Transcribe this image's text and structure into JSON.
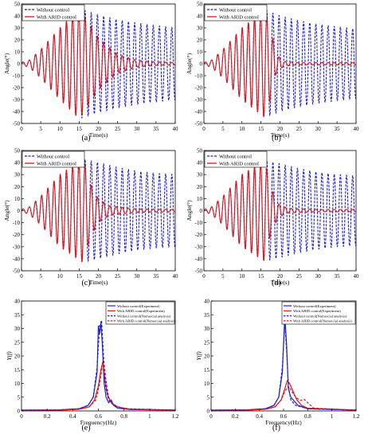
{
  "chart_data": [
    {
      "panel_label": "(a)",
      "type": "line",
      "xlabel": "Time(s)",
      "ylabel": "Angle(°)",
      "xlim": [
        0,
        40
      ],
      "ylim": [
        -50,
        50
      ],
      "xticks": [
        "0",
        "5",
        "10",
        "15",
        "20",
        "25",
        "30",
        "35",
        "40"
      ],
      "yticks": [
        "-50",
        "-40",
        "-30",
        "-20",
        "-10",
        "0",
        "10",
        "20",
        "30",
        "40",
        "50"
      ],
      "legend": "top-left",
      "series": [
        {
          "name": "Without control",
          "color": "#1f1fd6",
          "style": "dashed",
          "amplitude_envelope": {
            "t": [
              0,
              2,
              5,
              10,
              15,
              20,
              25,
              30,
              35,
              40
            ],
            "amp": [
              1,
              3,
              12,
              30,
              46,
              41,
              37,
              34,
              32,
              30
            ]
          }
        },
        {
          "name": "With ARID control",
          "color": "#e01414",
          "style": "solid",
          "amplitude_envelope": {
            "t": [
              0,
              2,
              5,
              10,
              15,
              18,
              20,
              25,
              30,
              35,
              40
            ],
            "amp": [
              1,
              3,
              12,
              30,
              46,
              32,
              22,
              8,
              3,
              1.5,
              1
            ]
          }
        }
      ]
    },
    {
      "panel_label": "(b)",
      "type": "line",
      "xlabel": "Time(s)",
      "ylabel": "Angle(°)",
      "xlim": [
        0,
        40
      ],
      "ylim": [
        -50,
        50
      ],
      "xticks": [
        "0",
        "5",
        "10",
        "15",
        "20",
        "25",
        "30",
        "35",
        "40"
      ],
      "yticks": [
        "-50",
        "-40",
        "-30",
        "-20",
        "-10",
        "0",
        "10",
        "20",
        "30",
        "40",
        "50"
      ],
      "legend": "top-left",
      "series": [
        {
          "name": "Without control",
          "color": "#1f1fd6",
          "style": "dashed",
          "amplitude_envelope": {
            "t": [
              0,
              2,
              5,
              10,
              16,
              20,
              25,
              30,
              35,
              40
            ],
            "amp": [
              1,
              3,
              12,
              30,
              45,
              40,
              36,
              33,
              31,
              29
            ]
          }
        },
        {
          "name": "With ARID control",
          "color": "#e01414",
          "style": "solid",
          "amplitude_envelope": {
            "t": [
              0,
              2,
              5,
              10,
              16,
              17.5,
              19,
              21,
              25,
              40
            ],
            "amp": [
              1,
              3,
              12,
              30,
              45,
              30,
              8,
              2,
              1,
              1
            ]
          }
        }
      ]
    },
    {
      "panel_label": "(c)",
      "type": "line",
      "xlabel": "Time(s)",
      "ylabel": "Angle(°)",
      "xlim": [
        0,
        40
      ],
      "ylim": [
        -50,
        50
      ],
      "xticks": [
        "0",
        "5",
        "10",
        "15",
        "20",
        "25",
        "30",
        "35",
        "40"
      ],
      "yticks": [
        "-50",
        "-40",
        "-30",
        "-20",
        "-10",
        "0",
        "10",
        "20",
        "30",
        "40",
        "50"
      ],
      "legend": "top-left",
      "series": [
        {
          "name": "Without control",
          "color": "#1f1fd6",
          "style": "dashed",
          "amplitude_envelope": {
            "t": [
              0,
              2,
              5,
              10,
              16,
              20,
              25,
              30,
              35,
              40
            ],
            "amp": [
              1,
              3,
              12,
              30,
              43,
              40,
              36,
              33,
              31,
              30
            ]
          }
        },
        {
          "name": "With ARID control",
          "color": "#e01414",
          "style": "solid",
          "amplitude_envelope": {
            "t": [
              0,
              2,
              5,
              10,
              16,
              18,
              20,
              23,
              30,
              40
            ],
            "amp": [
              1,
              3,
              12,
              30,
              43,
              22,
              10,
              4,
              1.5,
              1
            ]
          }
        }
      ]
    },
    {
      "panel_label": "(d)",
      "type": "line",
      "xlabel": "Time(s)",
      "ylabel": "Angle(°)",
      "xlim": [
        0,
        40
      ],
      "ylim": [
        -50,
        50
      ],
      "xticks": [
        "0",
        "5",
        "10",
        "15",
        "20",
        "25",
        "30",
        "35",
        "40"
      ],
      "yticks": [
        "-50",
        "-40",
        "-30",
        "-20",
        "-10",
        "0",
        "10",
        "20",
        "30",
        "40",
        "50"
      ],
      "legend": "top-left",
      "series": [
        {
          "name": "Without control",
          "color": "#1f1fd6",
          "style": "dashed",
          "amplitude_envelope": {
            "t": [
              0,
              2,
              5,
              10,
              16,
              20,
              25,
              30,
              35,
              40
            ],
            "amp": [
              1,
              3,
              12,
              30,
              42,
              39,
              35,
              32,
              30,
              29
            ]
          }
        },
        {
          "name": "With ARID control",
          "color": "#e01414",
          "style": "solid",
          "amplitude_envelope": {
            "t": [
              0,
              2,
              5,
              10,
              16,
              17.5,
              19.5,
              22,
              30,
              40
            ],
            "amp": [
              1,
              3,
              12,
              30,
              42,
              20,
              6,
              2,
              1,
              1
            ]
          }
        }
      ]
    },
    {
      "panel_label": "(e)",
      "type": "line",
      "xlabel": "Frequency(Hz)",
      "ylabel": "Y(f)",
      "xlim": [
        0,
        1.2
      ],
      "ylim": [
        0,
        40
      ],
      "xticks": [
        "0",
        "0.2",
        "0.4",
        "0.6",
        "0.8",
        "1",
        "1.2"
      ],
      "yticks": [
        "0",
        "5",
        "10",
        "15",
        "20",
        "25",
        "30",
        "35",
        "40"
      ],
      "legend": "top-right",
      "series": [
        {
          "name": "Without control(Experiment)",
          "color": "#1f1fd6",
          "style": "solid",
          "points": [
            [
              0,
              0.3
            ],
            [
              0.3,
              0.4
            ],
            [
              0.45,
              0.8
            ],
            [
              0.52,
              2
            ],
            [
              0.56,
              5
            ],
            [
              0.59,
              14
            ],
            [
              0.6,
              31
            ],
            [
              0.61,
              28
            ],
            [
              0.62,
              32
            ],
            [
              0.63,
              25
            ],
            [
              0.645,
              10
            ],
            [
              0.66,
              5
            ],
            [
              0.68,
              3
            ],
            [
              0.7,
              4
            ],
            [
              0.72,
              2
            ],
            [
              0.75,
              1
            ],
            [
              0.85,
              0.5
            ],
            [
              1.2,
              0.3
            ]
          ]
        },
        {
          "name": "With ARID control(Experiment)",
          "color": "#e01414",
          "style": "solid",
          "points": [
            [
              0,
              0.2
            ],
            [
              0.3,
              0.3
            ],
            [
              0.45,
              0.6
            ],
            [
              0.53,
              1.5
            ],
            [
              0.57,
              4
            ],
            [
              0.6,
              9
            ],
            [
              0.62,
              15
            ],
            [
              0.635,
              18
            ],
            [
              0.65,
              12
            ],
            [
              0.67,
              6
            ],
            [
              0.7,
              3
            ],
            [
              0.75,
              1.5
            ],
            [
              0.85,
              0.6
            ],
            [
              1.2,
              0.3
            ]
          ]
        },
        {
          "name": "Without control(Numercial analysis)",
          "color": "#1f1fd6",
          "style": "dashed",
          "points": [
            [
              0,
              0.3
            ],
            [
              0.3,
              0.4
            ],
            [
              0.45,
              0.8
            ],
            [
              0.52,
              2
            ],
            [
              0.56,
              5
            ],
            [
              0.59,
              16
            ],
            [
              0.61,
              31
            ],
            [
              0.625,
              33
            ],
            [
              0.64,
              20
            ],
            [
              0.655,
              9
            ],
            [
              0.68,
              4
            ],
            [
              0.72,
              2
            ],
            [
              0.8,
              0.8
            ],
            [
              1.2,
              0.3
            ]
          ]
        },
        {
          "name": "With ARID control(Numercial analysis)",
          "color": "#e01414",
          "style": "dashed",
          "points": [
            [
              0,
              0.2
            ],
            [
              0.3,
              0.3
            ],
            [
              0.45,
              0.6
            ],
            [
              0.53,
              1.5
            ],
            [
              0.58,
              4
            ],
            [
              0.61,
              10
            ],
            [
              0.63,
              16
            ],
            [
              0.645,
              17
            ],
            [
              0.66,
              11
            ],
            [
              0.68,
              5
            ],
            [
              0.72,
              2
            ],
            [
              0.8,
              0.8
            ],
            [
              1.2,
              0.3
            ]
          ]
        }
      ]
    },
    {
      "panel_label": "(f)",
      "type": "line",
      "xlabel": "Frequency(Hz)",
      "ylabel": "Y(f)",
      "xlim": [
        0,
        1.2
      ],
      "ylim": [
        0,
        40
      ],
      "xticks": [
        "0",
        "0.2",
        "0.4",
        "0.6",
        "0.8",
        "1",
        "1.2"
      ],
      "yticks": [
        "0",
        "5",
        "10",
        "15",
        "20",
        "25",
        "30",
        "35",
        "40"
      ],
      "legend": "top-right",
      "series": [
        {
          "name": "Without control(Experiment)",
          "color": "#1f1fd6",
          "style": "solid",
          "points": [
            [
              0,
              0.3
            ],
            [
              0.3,
              0.4
            ],
            [
              0.45,
              0.8
            ],
            [
              0.52,
              2
            ],
            [
              0.56,
              5
            ],
            [
              0.59,
              14
            ],
            [
              0.61,
              35
            ],
            [
              0.625,
              24
            ],
            [
              0.64,
              8
            ],
            [
              0.66,
              5
            ],
            [
              0.68,
              4
            ],
            [
              0.72,
              2
            ],
            [
              0.8,
              0.8
            ],
            [
              1.2,
              0.3
            ]
          ]
        },
        {
          "name": "With ARID control(Experiment)",
          "color": "#e01414",
          "style": "solid",
          "points": [
            [
              0,
              0.2
            ],
            [
              0.3,
              0.3
            ],
            [
              0.45,
              0.6
            ],
            [
              0.53,
              1.5
            ],
            [
              0.58,
              4
            ],
            [
              0.61,
              8
            ],
            [
              0.63,
              11
            ],
            [
              0.65,
              10
            ],
            [
              0.68,
              7
            ],
            [
              0.71,
              4
            ],
            [
              0.75,
              2
            ],
            [
              0.8,
              1
            ],
            [
              1.2,
              0.3
            ]
          ]
        },
        {
          "name": "Without control(Numercial analysis)",
          "color": "#1f1fd6",
          "style": "dashed",
          "points": [
            [
              0,
              0.3
            ],
            [
              0.3,
              0.4
            ],
            [
              0.45,
              0.8
            ],
            [
              0.52,
              2
            ],
            [
              0.56,
              5
            ],
            [
              0.59,
              16
            ],
            [
              0.61,
              32
            ],
            [
              0.625,
              22
            ],
            [
              0.64,
              9
            ],
            [
              0.66,
              4
            ],
            [
              0.7,
              2
            ],
            [
              0.8,
              0.8
            ],
            [
              1.2,
              0.3
            ]
          ]
        },
        {
          "name": "With ARID control(Numercial analysis)",
          "color": "#e01414",
          "style": "dashed",
          "points": [
            [
              0,
              0.2
            ],
            [
              0.3,
              0.3
            ],
            [
              0.45,
              0.6
            ],
            [
              0.53,
              1.5
            ],
            [
              0.58,
              4
            ],
            [
              0.61,
              7
            ],
            [
              0.64,
              9
            ],
            [
              0.67,
              7
            ],
            [
              0.7,
              5
            ],
            [
              0.74,
              3.8
            ],
            [
              0.77,
              4.2
            ],
            [
              0.8,
              3
            ],
            [
              0.85,
              1
            ],
            [
              1.2,
              0.3
            ]
          ]
        }
      ]
    }
  ]
}
